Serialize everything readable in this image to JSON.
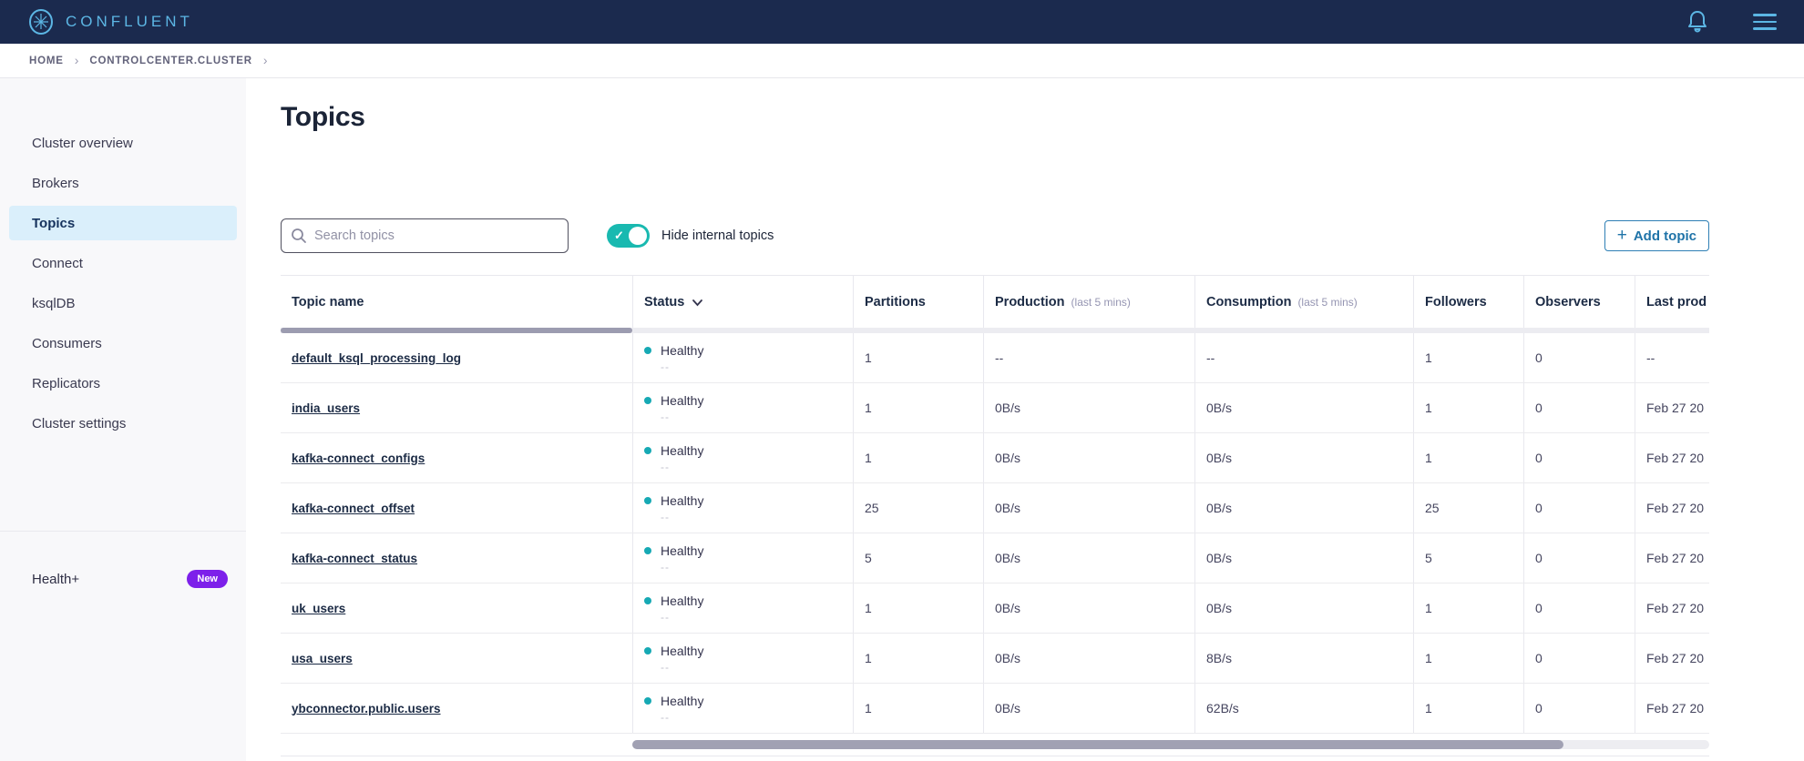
{
  "navbar": {
    "brand": "CONFLUENT"
  },
  "breadcrumb": {
    "items": [
      "HOME",
      "CONTROLCENTER.CLUSTER"
    ]
  },
  "sidebar": {
    "items": [
      {
        "label": "Cluster overview",
        "active": false
      },
      {
        "label": "Brokers",
        "active": false
      },
      {
        "label": "Topics",
        "active": true
      },
      {
        "label": "Connect",
        "active": false
      },
      {
        "label": "ksqlDB",
        "active": false
      },
      {
        "label": "Consumers",
        "active": false
      },
      {
        "label": "Replicators",
        "active": false
      },
      {
        "label": "Cluster settings",
        "active": false
      }
    ],
    "footer": {
      "label": "Health+",
      "badge": "New"
    }
  },
  "main": {
    "title": "Topics",
    "search_placeholder": "Search topics",
    "toggle_label": "Hide internal topics",
    "toggle_on": true,
    "add_topic_label": "Add topic",
    "table": {
      "columns": [
        {
          "label": "Topic name",
          "sub": "",
          "sortable": false
        },
        {
          "label": "Status",
          "sub": "",
          "sortable": true
        },
        {
          "label": "Partitions",
          "sub": "",
          "sortable": false
        },
        {
          "label": "Production",
          "sub": "(last 5 mins)",
          "sortable": false
        },
        {
          "label": "Consumption",
          "sub": "(last 5 mins)",
          "sortable": false
        },
        {
          "label": "Followers",
          "sub": "",
          "sortable": false
        },
        {
          "label": "Observers",
          "sub": "",
          "sortable": false
        },
        {
          "label": "Last prod",
          "sub": "",
          "sortable": false
        }
      ],
      "rows": [
        {
          "name": "default_ksql_processing_log",
          "status": "Healthy",
          "status_sub": "--",
          "partitions": "1",
          "production": "--",
          "consumption": "--",
          "followers": "1",
          "observers": "0",
          "last_produced": "--"
        },
        {
          "name": "india_users",
          "status": "Healthy",
          "status_sub": "--",
          "partitions": "1",
          "production": "0B/s",
          "consumption": "0B/s",
          "followers": "1",
          "observers": "0",
          "last_produced": "Feb 27 20"
        },
        {
          "name": "kafka-connect_configs",
          "status": "Healthy",
          "status_sub": "--",
          "partitions": "1",
          "production": "0B/s",
          "consumption": "0B/s",
          "followers": "1",
          "observers": "0",
          "last_produced": "Feb 27 20"
        },
        {
          "name": "kafka-connect_offset",
          "status": "Healthy",
          "status_sub": "--",
          "partitions": "25",
          "production": "0B/s",
          "consumption": "0B/s",
          "followers": "25",
          "observers": "0",
          "last_produced": "Feb 27 20"
        },
        {
          "name": "kafka-connect_status",
          "status": "Healthy",
          "status_sub": "--",
          "partitions": "5",
          "production": "0B/s",
          "consumption": "0B/s",
          "followers": "5",
          "observers": "0",
          "last_produced": "Feb 27 20"
        },
        {
          "name": "uk_users",
          "status": "Healthy",
          "status_sub": "--",
          "partitions": "1",
          "production": "0B/s",
          "consumption": "0B/s",
          "followers": "1",
          "observers": "0",
          "last_produced": "Feb 27 20"
        },
        {
          "name": "usa_users",
          "status": "Healthy",
          "status_sub": "--",
          "partitions": "1",
          "production": "0B/s",
          "consumption": "8B/s",
          "followers": "1",
          "observers": "0",
          "last_produced": "Feb 27 20"
        },
        {
          "name": "ybconnector.public.users",
          "status": "Healthy",
          "status_sub": "--",
          "partitions": "1",
          "production": "0B/s",
          "consumption": "62B/s",
          "followers": "1",
          "observers": "0",
          "last_produced": "Feb 27 20"
        }
      ]
    }
  },
  "colors": {
    "navbar_bg": "#1b2a4e",
    "brand_blue": "#5cb6e4",
    "accent_teal": "#19b9b0",
    "status_dot": "#16a9b4",
    "badge_purple": "#7d20ea",
    "button_blue": "#1f73a8",
    "active_item_bg": "#daeffb"
  }
}
